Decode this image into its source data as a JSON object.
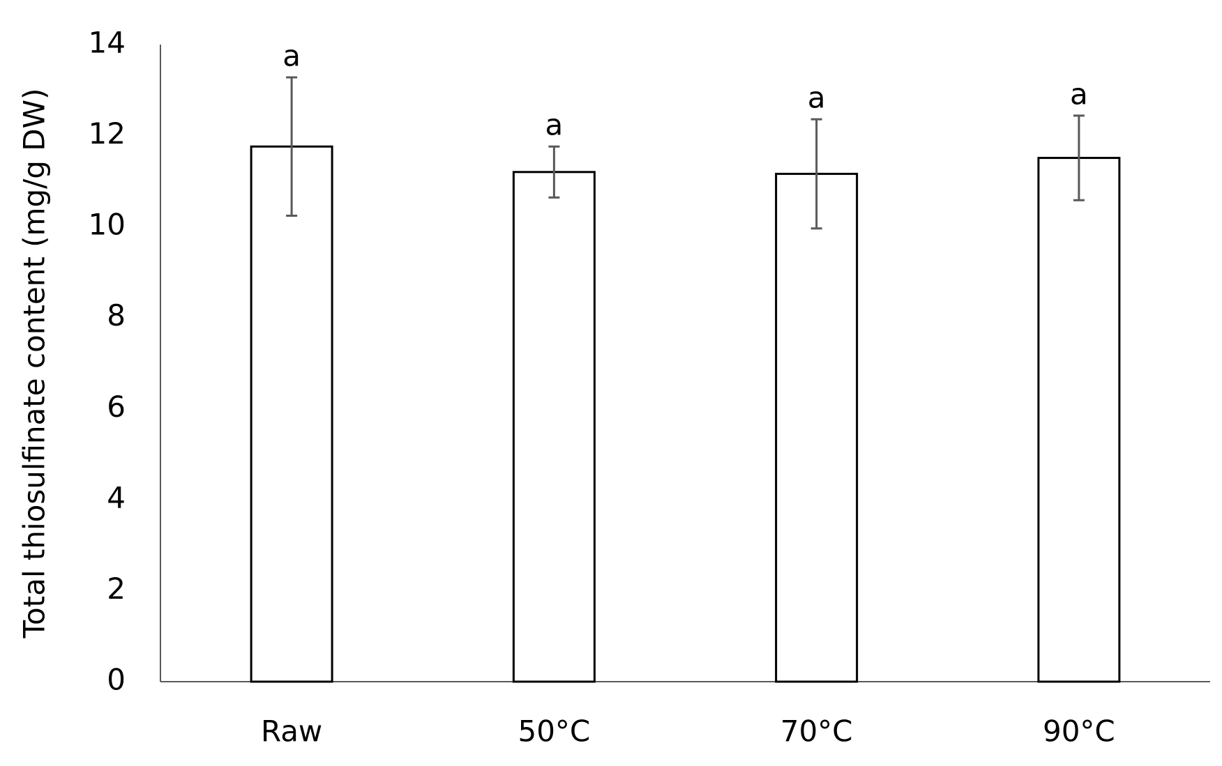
{
  "chart_data": {
    "type": "bar",
    "ylabel": "Total thiosulfinate content (mg/g DW)",
    "categories": [
      "Raw",
      "50°C",
      "70°C",
      "90°C"
    ],
    "values": [
      11.76,
      11.2,
      11.16,
      11.51
    ],
    "errors": [
      1.52,
      0.56,
      1.2,
      0.93
    ],
    "annotations": [
      "a",
      "a",
      "a",
      "a"
    ],
    "color": "#ffffff",
    "edgecolor": "#000000",
    "errorcolor": "#595959",
    "ylim": [
      0,
      14
    ],
    "yticks": [
      0,
      2,
      4,
      6,
      8,
      10,
      12,
      14
    ],
    "grid": false
  }
}
